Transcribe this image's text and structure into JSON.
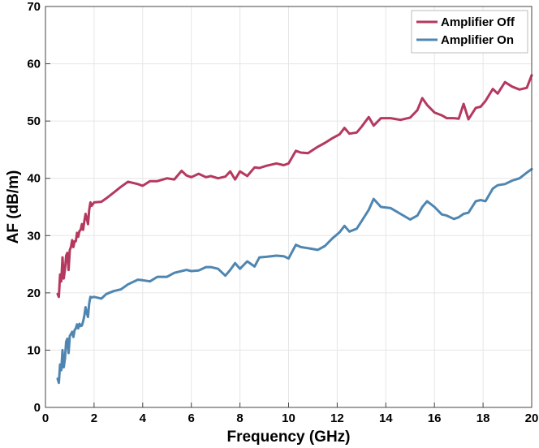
{
  "chart_data": {
    "type": "line",
    "xlabel": "Frequency (GHz)",
    "ylabel": "AF (dB/m)",
    "xlim": [
      0,
      20
    ],
    "ylim": [
      0,
      70
    ],
    "xticks": [
      0,
      2,
      4,
      6,
      8,
      10,
      12,
      14,
      16,
      18,
      20
    ],
    "yticks": [
      0,
      10,
      20,
      30,
      40,
      50,
      60,
      70
    ],
    "grid": true,
    "legend_position": "top-right",
    "series": [
      {
        "name": "Amplifier Off",
        "color": "#b5395f",
        "x": [
          0.5,
          0.55,
          0.6,
          0.65,
          0.7,
          0.75,
          0.8,
          0.85,
          0.9,
          0.95,
          1.0,
          1.05,
          1.1,
          1.15,
          1.2,
          1.25,
          1.3,
          1.35,
          1.4,
          1.45,
          1.5,
          1.55,
          1.6,
          1.65,
          1.7,
          1.75,
          1.8,
          1.85,
          1.9,
          2.0,
          2.3,
          2.5,
          2.8,
          3.1,
          3.4,
          3.8,
          4.0,
          4.3,
          4.6,
          5.0,
          5.3,
          5.6,
          5.8,
          6.0,
          6.3,
          6.6,
          6.8,
          7.1,
          7.4,
          7.6,
          7.8,
          8.0,
          8.3,
          8.6,
          8.8,
          9.1,
          9.5,
          9.8,
          10.0,
          10.3,
          10.5,
          10.8,
          11.2,
          11.5,
          11.8,
          12.1,
          12.3,
          12.5,
          12.8,
          13.0,
          13.3,
          13.5,
          13.8,
          14.2,
          14.6,
          15.0,
          15.3,
          15.5,
          15.7,
          16.0,
          16.3,
          16.5,
          16.8,
          17.0,
          17.2,
          17.4,
          17.7,
          17.9,
          18.1,
          18.4,
          18.6,
          18.9,
          19.2,
          19.5,
          19.8,
          20.0
        ],
        "values": [
          19.8,
          19.3,
          23.2,
          22.0,
          26.2,
          22.5,
          24.0,
          26.5,
          27.0,
          24.0,
          27.5,
          28.0,
          29.2,
          28.0,
          29.0,
          29.0,
          30.5,
          29.8,
          30.8,
          31.0,
          32.0,
          31.0,
          32.5,
          33.8,
          33.0,
          32.0,
          34.5,
          35.8,
          35.2,
          35.8,
          35.9,
          36.5,
          37.5,
          38.5,
          39.4,
          39.0,
          38.7,
          39.5,
          39.5,
          40.0,
          39.8,
          41.3,
          40.5,
          40.2,
          40.8,
          40.2,
          40.4,
          40.0,
          40.3,
          41.2,
          39.8,
          41.2,
          40.4,
          41.9,
          41.8,
          42.2,
          42.6,
          42.3,
          42.6,
          44.8,
          44.5,
          44.4,
          45.5,
          46.2,
          47.0,
          47.7,
          48.8,
          47.8,
          48.0,
          49.0,
          50.7,
          49.2,
          50.5,
          50.5,
          50.2,
          50.6,
          51.9,
          54.0,
          52.8,
          51.5,
          51.0,
          50.5,
          50.5,
          50.4,
          53.0,
          50.3,
          52.3,
          52.5,
          53.5,
          55.6,
          54.8,
          56.8,
          56.0,
          55.5,
          55.8,
          58.0
        ]
      },
      {
        "name": "Amplifier On",
        "color": "#4f86b1",
        "x": [
          0.5,
          0.55,
          0.6,
          0.65,
          0.7,
          0.75,
          0.8,
          0.85,
          0.9,
          0.95,
          1.0,
          1.05,
          1.1,
          1.15,
          1.2,
          1.25,
          1.3,
          1.35,
          1.4,
          1.45,
          1.5,
          1.55,
          1.6,
          1.65,
          1.7,
          1.75,
          1.8,
          1.85,
          1.9,
          2.0,
          2.3,
          2.5,
          2.8,
          3.1,
          3.4,
          3.8,
          4.0,
          4.3,
          4.6,
          5.0,
          5.3,
          5.6,
          5.8,
          6.0,
          6.3,
          6.6,
          6.8,
          7.1,
          7.4,
          7.6,
          7.8,
          8.0,
          8.3,
          8.6,
          8.8,
          9.1,
          9.5,
          9.8,
          10.0,
          10.3,
          10.5,
          10.8,
          11.2,
          11.5,
          11.8,
          12.1,
          12.3,
          12.5,
          12.8,
          13.0,
          13.3,
          13.5,
          13.8,
          14.2,
          14.6,
          15.0,
          15.3,
          15.5,
          15.7,
          16.0,
          16.3,
          16.5,
          16.8,
          17.0,
          17.2,
          17.4,
          17.7,
          17.9,
          18.1,
          18.4,
          18.6,
          18.9,
          19.2,
          19.5,
          19.8,
          20.0
        ],
        "values": [
          5.0,
          4.3,
          7.5,
          6.5,
          10.0,
          7.0,
          8.5,
          11.5,
          12.0,
          9.5,
          12.5,
          12.8,
          13.2,
          12.3,
          13.5,
          13.8,
          14.5,
          13.8,
          14.6,
          14.2,
          14.3,
          15.0,
          16.0,
          17.5,
          16.5,
          15.8,
          18.2,
          19.3,
          19.2,
          19.3,
          19.0,
          19.8,
          20.3,
          20.6,
          21.5,
          22.3,
          22.2,
          22.0,
          22.8,
          22.8,
          23.5,
          23.8,
          24.0,
          23.8,
          23.9,
          24.5,
          24.5,
          24.2,
          23.0,
          24.0,
          25.2,
          24.2,
          25.5,
          24.6,
          26.2,
          26.3,
          26.5,
          26.4,
          26.0,
          28.4,
          28.0,
          27.8,
          27.5,
          28.2,
          29.5,
          30.6,
          31.7,
          30.7,
          31.2,
          32.5,
          34.5,
          36.4,
          35.0,
          34.8,
          33.8,
          32.8,
          33.5,
          35.0,
          36.0,
          35.0,
          33.7,
          33.5,
          32.9,
          33.2,
          33.8,
          34.0,
          36.0,
          36.2,
          36.0,
          38.2,
          38.8,
          39.0,
          39.6,
          40.0,
          41.0,
          41.6
        ]
      }
    ]
  }
}
